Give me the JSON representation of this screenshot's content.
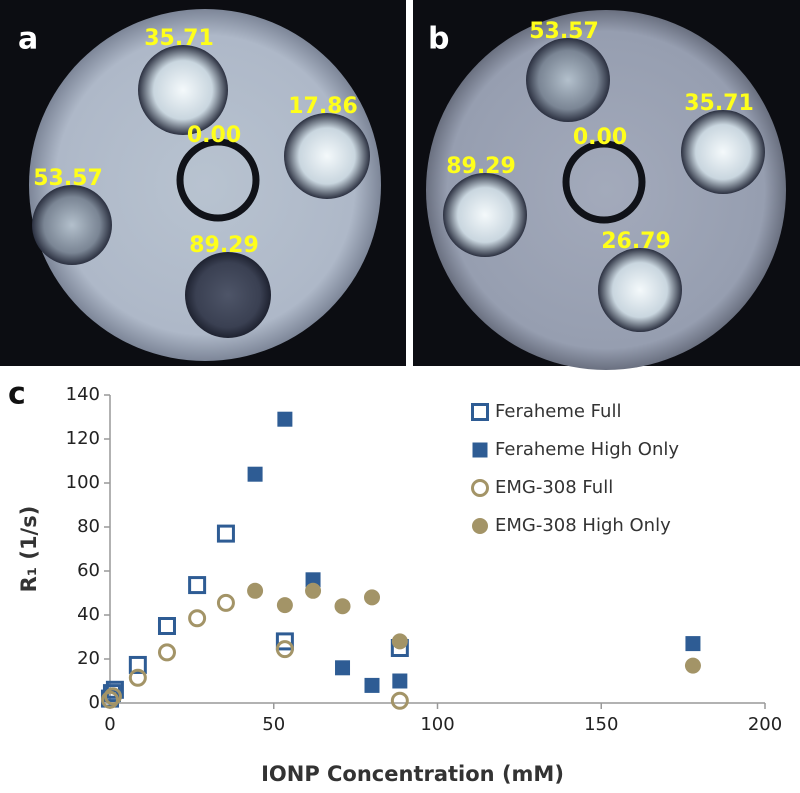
{
  "panels": [
    {
      "letter": "a",
      "labels": [
        "35.71",
        "17.86",
        "0.00",
        "53.57",
        "89.29"
      ]
    },
    {
      "letter": "b",
      "labels": [
        "53.57",
        "35.71",
        "0.00",
        "89.29",
        "26.79"
      ]
    }
  ],
  "chart_data": {
    "type": "scatter",
    "letter": "c",
    "xlabel": "IONP Concentration (mM)",
    "ylabel": "R₁ (1/s)",
    "xlim": [
      0,
      200
    ],
    "ylim": [
      0,
      140
    ],
    "xticks": [
      0,
      50,
      100,
      150,
      200
    ],
    "yticks": [
      0,
      20,
      40,
      60,
      80,
      100,
      120,
      140
    ],
    "grid": false,
    "legend": "upper right",
    "series": [
      {
        "name": "Feraheme Full",
        "color": "#2e5c94",
        "marker": "square-open",
        "x": [
          0,
          0.6,
          1.5,
          8.5,
          17.4,
          26.6,
          35.4,
          53.4,
          88.5
        ],
        "values": [
          2,
          4.5,
          6,
          17.3,
          35,
          53.6,
          77,
          28,
          25
        ]
      },
      {
        "name": "Feraheme High Only",
        "color": "#2e5c94",
        "marker": "square",
        "x": [
          44.3,
          53.4,
          62,
          71,
          80,
          88.5,
          178
        ],
        "values": [
          104,
          129,
          56,
          16,
          8,
          10,
          27
        ]
      },
      {
        "name": "EMG-308 Full",
        "color": "#a39467",
        "marker": "circle-open",
        "x": [
          0,
          0.9,
          8.5,
          17.4,
          26.6,
          35.4,
          53.4,
          88.5
        ],
        "values": [
          1.5,
          3,
          11.5,
          23,
          38.5,
          45.5,
          24.5,
          1
        ]
      },
      {
        "name": "EMG-308 High Only",
        "color": "#a39467",
        "marker": "circle",
        "x": [
          44.3,
          53.4,
          62,
          71,
          80,
          88.5,
          178
        ],
        "values": [
          51,
          44.5,
          51,
          44,
          48,
          28,
          17
        ]
      }
    ]
  }
}
